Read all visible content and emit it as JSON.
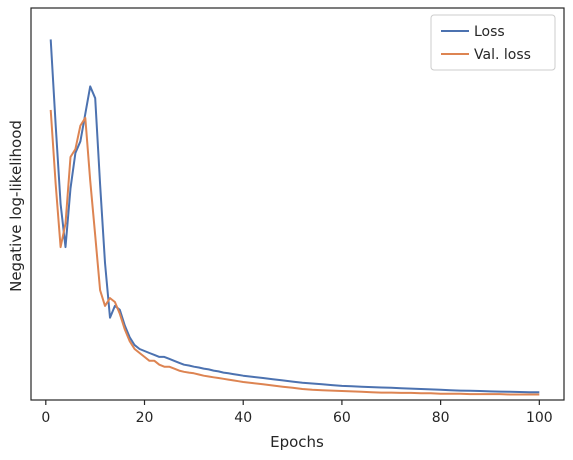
{
  "chart_data": {
    "type": "line",
    "title": "",
    "xlabel": "Epochs",
    "ylabel": "Negative log-likelihood",
    "xlim": [
      -3,
      105
    ],
    "ylim": [
      0,
      100
    ],
    "xticks": [
      0,
      20,
      40,
      60,
      80,
      100
    ],
    "yticks_shown": false,
    "grid": false,
    "legend": {
      "placement": "top-right"
    },
    "series": [
      {
        "name": "Loss",
        "color": "#4c72b0",
        "x": [
          1,
          2,
          3,
          4,
          5,
          6,
          7,
          8,
          9,
          10,
          11,
          12,
          13,
          14,
          15,
          16,
          17,
          18,
          19,
          20,
          21,
          22,
          23,
          24,
          25,
          26,
          27,
          28,
          29,
          30,
          31,
          32,
          33,
          34,
          35,
          36,
          37,
          38,
          39,
          40,
          42,
          44,
          46,
          48,
          50,
          52,
          54,
          56,
          58,
          60,
          62,
          64,
          66,
          68,
          70,
          72,
          74,
          76,
          78,
          80,
          82,
          84,
          86,
          88,
          90,
          92,
          94,
          96,
          98,
          100
        ],
        "y": [
          92,
          70,
          50,
          39,
          54,
          63,
          66,
          73,
          80,
          77,
          55,
          35,
          21,
          24,
          23,
          19,
          16,
          14,
          13,
          12.5,
          12,
          11.5,
          11,
          11,
          10.5,
          10,
          9.5,
          9,
          8.8,
          8.5,
          8.3,
          8,
          7.8,
          7.5,
          7.3,
          7,
          6.8,
          6.6,
          6.4,
          6.2,
          5.9,
          5.6,
          5.3,
          5,
          4.7,
          4.4,
          4.2,
          4,
          3.8,
          3.6,
          3.5,
          3.4,
          3.3,
          3.2,
          3.1,
          3.0,
          2.9,
          2.8,
          2.7,
          2.6,
          2.5,
          2.4,
          2.35,
          2.3,
          2.2,
          2.15,
          2.1,
          2.05,
          2.0,
          2.0
        ]
      },
      {
        "name": "Val. loss",
        "color": "#dd8452",
        "x": [
          1,
          2,
          3,
          4,
          5,
          6,
          7,
          8,
          9,
          10,
          11,
          12,
          13,
          14,
          15,
          16,
          17,
          18,
          19,
          20,
          21,
          22,
          23,
          24,
          25,
          26,
          27,
          28,
          29,
          30,
          31,
          32,
          33,
          34,
          35,
          36,
          37,
          38,
          39,
          40,
          42,
          44,
          46,
          48,
          50,
          52,
          54,
          56,
          58,
          60,
          62,
          64,
          66,
          68,
          70,
          72,
          74,
          76,
          78,
          80,
          82,
          84,
          86,
          88,
          90,
          92,
          94,
          96,
          98,
          100
        ],
        "y": [
          74,
          55,
          39,
          45,
          62,
          64,
          70,
          72,
          56,
          42,
          28,
          24,
          26,
          25,
          22,
          18,
          15,
          13,
          12,
          11,
          10,
          10,
          9,
          8.5,
          8.5,
          8,
          7.5,
          7.2,
          7,
          6.8,
          6.5,
          6.2,
          6,
          5.8,
          5.6,
          5.4,
          5.2,
          5,
          4.8,
          4.6,
          4.3,
          4.0,
          3.7,
          3.4,
          3.1,
          2.8,
          2.6,
          2.5,
          2.4,
          2.3,
          2.2,
          2.1,
          2.0,
          1.9,
          1.9,
          1.8,
          1.8,
          1.7,
          1.7,
          1.6,
          1.6,
          1.6,
          1.5,
          1.5,
          1.5,
          1.5,
          1.4,
          1.4,
          1.4,
          1.4
        ]
      }
    ]
  }
}
